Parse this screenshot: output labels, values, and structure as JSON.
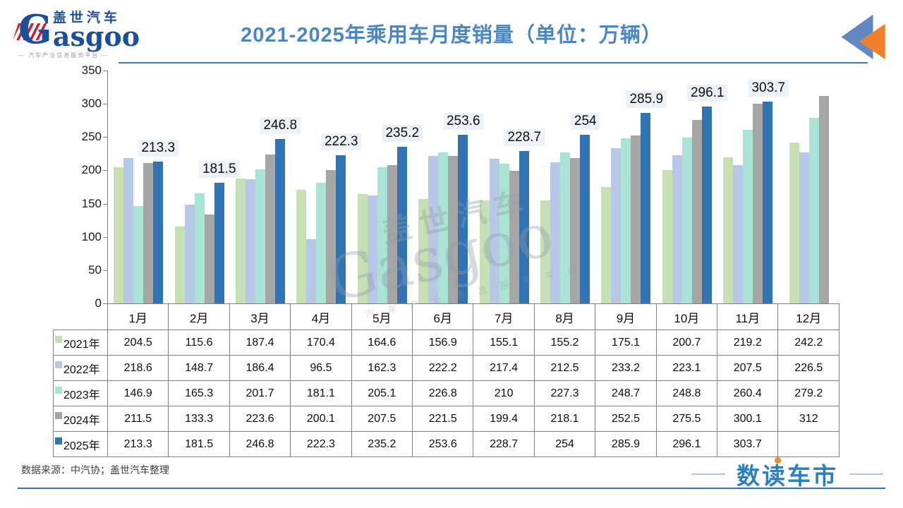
{
  "header": {
    "logo_cn": "盖世汽车",
    "logo_en_g": "G",
    "logo_en_rest": "asgoo",
    "logo_tagline": "— 汽车产业信息服务平台 —",
    "title": "2021-2025年乘用车月度销量（单位：万辆）"
  },
  "chart_data": {
    "type": "bar",
    "title": "2021-2025年乘用车月度销量（单位：万辆）",
    "unit": "万辆",
    "categories": [
      "1月",
      "2月",
      "3月",
      "4月",
      "5月",
      "6月",
      "7月",
      "8月",
      "9月",
      "10月",
      "11月",
      "12月"
    ],
    "series": [
      {
        "name": "2021年",
        "color": "#c6e0b4",
        "values": [
          204.5,
          115.6,
          187.4,
          170.4,
          164.6,
          156.9,
          155.1,
          155.2,
          175.1,
          200.7,
          219.2,
          242.2
        ]
      },
      {
        "name": "2022年",
        "color": "#b7c8e6",
        "values": [
          218.6,
          148.7,
          186.4,
          96.5,
          162.3,
          222.2,
          217.4,
          212.5,
          233.2,
          223.1,
          207.5,
          226.5
        ]
      },
      {
        "name": "2023年",
        "color": "#a8e3d6",
        "values": [
          146.9,
          165.3,
          201.7,
          181.1,
          205.1,
          226.8,
          210,
          227.3,
          248.7,
          248.8,
          260.4,
          279.2
        ]
      },
      {
        "name": "2024年",
        "color": "#a6a6a6",
        "values": [
          211.5,
          133.3,
          223.6,
          200.1,
          207.5,
          221.5,
          199.4,
          218.1,
          252.5,
          275.5,
          300.1,
          312
        ]
      },
      {
        "name": "2025年",
        "color": "#3273b4",
        "values": [
          213.3,
          181.5,
          246.8,
          222.3,
          235.2,
          253.6,
          228.7,
          254,
          285.9,
          296.1,
          303.7,
          null
        ]
      }
    ],
    "show_labels_for": "2025年",
    "ylim": [
      0,
      350
    ],
    "yticks": [
      0,
      50,
      100,
      150,
      200,
      250,
      300,
      350
    ],
    "grid": false,
    "legend_position": "table-left"
  },
  "watermark": {
    "cn": "盖世汽车",
    "en": "Gasgoo",
    "tagline": "汽 车 产 业 信 息 服 务 平 台"
  },
  "footer": {
    "source": "数据来源：中汽协；盖世汽车整理",
    "brand": "数读车市"
  }
}
